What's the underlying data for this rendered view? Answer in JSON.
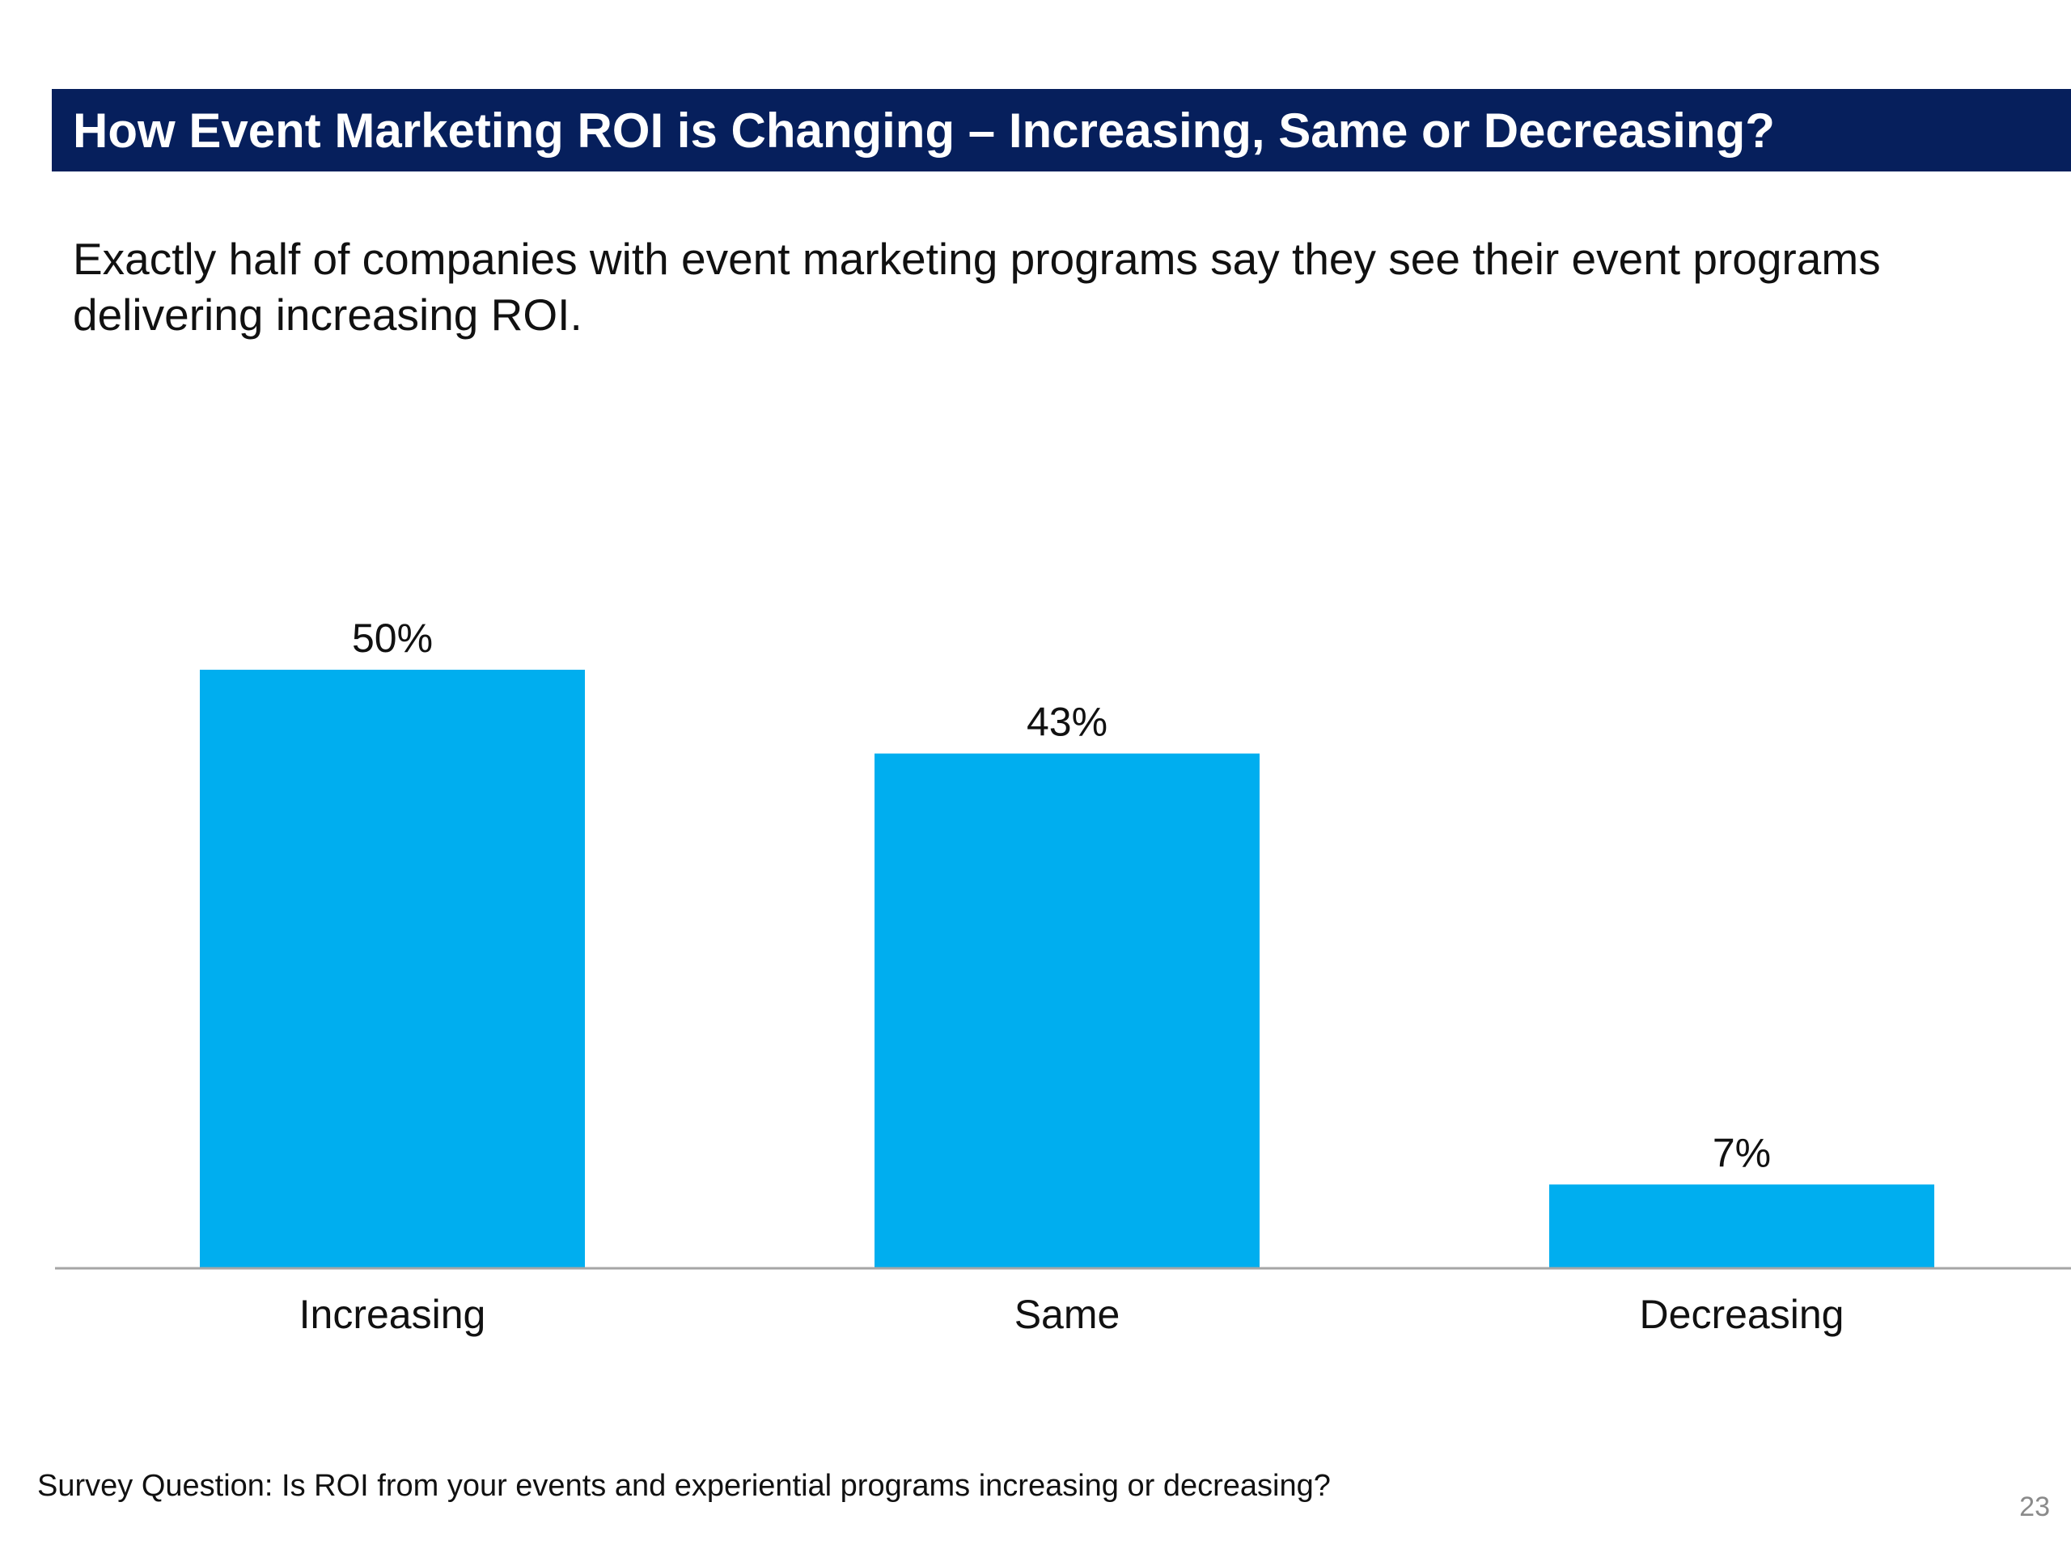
{
  "slide": {
    "title": "How Event Marketing ROI is Changing – Increasing, Same or Decreasing?",
    "subtitle": "Exactly half of companies with event marketing programs say they see their event programs delivering increasing ROI.",
    "footnote": "Survey Question: Is ROI from your events and experiential programs increasing or decreasing?",
    "page_number": "23"
  },
  "colors": {
    "banner": "#061f5c",
    "bar": "#00aeef",
    "axis": "#a6a6a6"
  },
  "chart_data": {
    "type": "bar",
    "title": "",
    "xlabel": "",
    "ylabel": "",
    "categories": [
      "Increasing",
      "Same",
      "Decreasing"
    ],
    "values": [
      50,
      43,
      7
    ],
    "data_labels": [
      "50%",
      "43%",
      "7%"
    ],
    "ylim": [
      0,
      50
    ],
    "grid": false,
    "legend": "none"
  }
}
